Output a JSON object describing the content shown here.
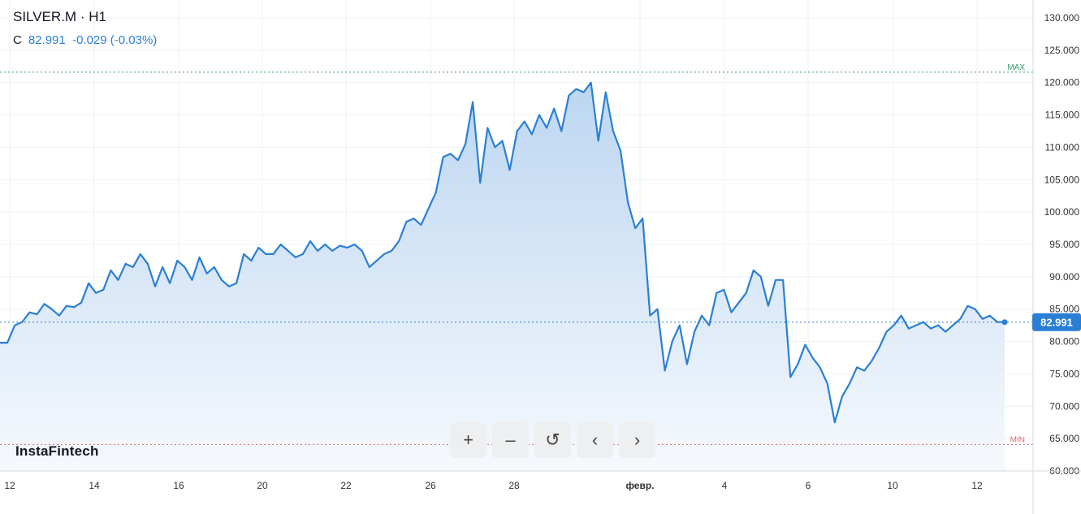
{
  "header": {
    "title": "SILVER.M · H1",
    "quote_label": "C",
    "quote_value": "82.991",
    "quote_change": "-0.029 (-0.03%)"
  },
  "brand": "InstaFintech",
  "controls": [
    {
      "name": "zoom-in-button",
      "icon": "plus-icon",
      "glyph": "+"
    },
    {
      "name": "zoom-out-button",
      "icon": "minus-icon",
      "glyph": "–"
    },
    {
      "name": "reset-button",
      "icon": "reset-icon",
      "glyph": "↺"
    },
    {
      "name": "scroll-left-button",
      "icon": "chevron-left-icon",
      "glyph": "‹"
    },
    {
      "name": "scroll-right-button",
      "icon": "chevron-right-icon",
      "glyph": "›"
    }
  ],
  "colors": {
    "line": "#2a7fd4",
    "area_top": "#bcd6f1",
    "area_bottom": "#f6f9fd",
    "max": "#2e9e6b",
    "min": "#e36a6a",
    "price_badge": "#2a7fd4",
    "grid": "#eef0f3"
  },
  "chart_data": {
    "type": "area",
    "ylim": [
      60,
      132
    ],
    "y_ticks": [
      "130.000",
      "125.000",
      "120.000",
      "115.000",
      "110.000",
      "105.000",
      "100.000",
      "95.000",
      "90.000",
      "85.000",
      "80.000",
      "75.000",
      "70.000",
      "65.000",
      "60.000"
    ],
    "x_ticks": [
      "12",
      "14",
      "16",
      "20",
      "22",
      "26",
      "28",
      "февр.",
      "4",
      "6",
      "10",
      "12"
    ],
    "max_label": "MAX",
    "max_value": 121.6,
    "min_label": "MIN",
    "min_value": 64.1,
    "last_price": 82.991,
    "last_label": "82.991",
    "series": [
      {
        "values": [
          79.8,
          79.8,
          82.5,
          83.0,
          84.5,
          84.2,
          85.8,
          85.0,
          84.0,
          85.5,
          85.3,
          86.0,
          89.0,
          87.5,
          88.0,
          91.0,
          89.5,
          92.0,
          91.5,
          93.5,
          92.0,
          88.5,
          91.5,
          89.0,
          92.5,
          91.5,
          89.5,
          93.0,
          90.5,
          91.5,
          89.5,
          88.5,
          89.0,
          93.5,
          92.5,
          94.5,
          93.5,
          93.5,
          95.0,
          94.0,
          93.0,
          93.5,
          95.5,
          94.0,
          95.0,
          94.0,
          94.8,
          94.5,
          95.0,
          94.0,
          91.5,
          92.5,
          93.5,
          94.0,
          95.5,
          98.5,
          99.0,
          98.0,
          100.5,
          103.0,
          108.5,
          109.0,
          108.0,
          110.5,
          117.0,
          104.5,
          113.0,
          110.0,
          111.0,
          106.5,
          112.5,
          114.0,
          112.0,
          115.0,
          113.0,
          116.0,
          112.5,
          118.0,
          119.0,
          118.5,
          120.0,
          111.0,
          118.5,
          112.5,
          109.5,
          101.5,
          97.5,
          99.0,
          84.0,
          85.0,
          75.5,
          80.0,
          82.5,
          76.5,
          81.5,
          84.0,
          82.5,
          87.5,
          88.0,
          84.5,
          86.0,
          87.5,
          91.0,
          90.0,
          85.5,
          89.5,
          89.5,
          74.5,
          76.5,
          79.5,
          77.5,
          76.0,
          73.5,
          67.5,
          71.5,
          73.5,
          76.0,
          75.5,
          77.0,
          79.0,
          81.5,
          82.5,
          84.0,
          82.0,
          82.5,
          83.0,
          82.0,
          82.5,
          81.5,
          82.5,
          83.5,
          85.5,
          85.0,
          83.5,
          84.0,
          83.0,
          82.991
        ]
      }
    ]
  }
}
